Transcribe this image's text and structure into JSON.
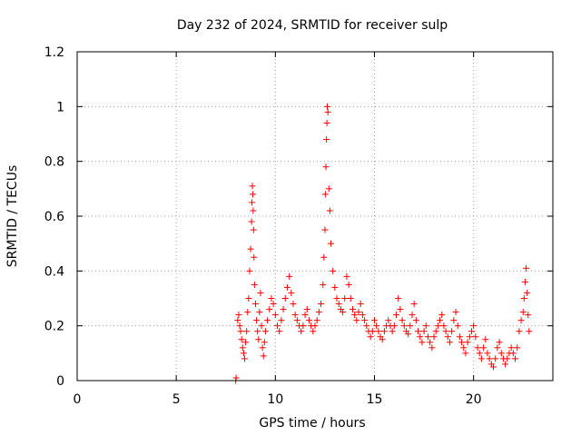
{
  "chart_data": {
    "type": "scatter",
    "title": "Day 232 of 2024, SRMTID for receiver sulp",
    "xlabel": "GPS time / hours",
    "ylabel": "SRMTID / TECUs",
    "xlim": [
      0,
      24
    ],
    "ylim": [
      0,
      1.2
    ],
    "xticks": [
      0,
      5,
      10,
      15,
      20
    ],
    "yticks": [
      0,
      0.2,
      0.4,
      0.6,
      0.8,
      1,
      1.2
    ],
    "xtick_labels": [
      "0",
      "5",
      "10",
      "15",
      "20"
    ],
    "ytick_labels": [
      "0",
      "0.2",
      "0.4",
      "0.6",
      "0.8",
      "1",
      "1.2"
    ],
    "grid": true,
    "marker": "+",
    "color": "#ff0000",
    "series": [
      {
        "name": "SRMTID",
        "x": [
          8.0,
          8.02,
          8.1,
          8.15,
          8.2,
          8.25,
          8.3,
          8.35,
          8.4,
          8.45,
          8.5,
          8.55,
          8.6,
          8.65,
          8.7,
          8.75,
          8.8,
          8.82,
          8.84,
          8.86,
          8.88,
          8.9,
          8.92,
          8.95,
          9.0,
          9.05,
          9.1,
          9.15,
          9.2,
          9.25,
          9.3,
          9.35,
          9.4,
          9.45,
          9.5,
          9.6,
          9.7,
          9.8,
          9.9,
          10.0,
          10.1,
          10.2,
          10.3,
          10.4,
          10.5,
          10.6,
          10.7,
          10.8,
          10.9,
          11.0,
          11.1,
          11.2,
          11.3,
          11.4,
          11.5,
          11.6,
          11.7,
          11.8,
          11.9,
          12.0,
          12.1,
          12.2,
          12.3,
          12.4,
          12.45,
          12.5,
          12.52,
          12.55,
          12.58,
          12.6,
          12.62,
          12.65,
          12.7,
          12.75,
          12.8,
          12.9,
          13.0,
          13.1,
          13.2,
          13.3,
          13.4,
          13.5,
          13.6,
          13.7,
          13.8,
          13.9,
          14.0,
          14.1,
          14.2,
          14.3,
          14.4,
          14.5,
          14.6,
          14.7,
          14.8,
          14.9,
          15.0,
          15.1,
          15.2,
          15.3,
          15.4,
          15.5,
          15.6,
          15.7,
          15.8,
          15.9,
          16.0,
          16.1,
          16.2,
          16.3,
          16.4,
          16.5,
          16.6,
          16.7,
          16.8,
          16.9,
          17.0,
          17.1,
          17.2,
          17.3,
          17.4,
          17.5,
          17.6,
          17.7,
          17.8,
          17.9,
          18.0,
          18.1,
          18.2,
          18.3,
          18.4,
          18.5,
          18.6,
          18.7,
          18.8,
          18.9,
          19.0,
          19.1,
          19.2,
          19.3,
          19.4,
          19.5,
          19.6,
          19.7,
          19.8,
          19.9,
          20.0,
          20.1,
          20.2,
          20.3,
          20.4,
          20.5,
          20.6,
          20.7,
          20.8,
          20.9,
          21.0,
          21.1,
          21.2,
          21.3,
          21.4,
          21.5,
          21.6,
          21.7,
          21.8,
          21.9,
          22.0,
          22.1,
          22.2,
          22.3,
          22.4,
          22.5,
          22.55,
          22.6,
          22.65,
          22.7,
          22.75,
          22.8
        ],
        "y": [
          0.0,
          0.01,
          0.22,
          0.24,
          0.2,
          0.18,
          0.15,
          0.12,
          0.1,
          0.08,
          0.14,
          0.18,
          0.25,
          0.3,
          0.4,
          0.48,
          0.58,
          0.65,
          0.71,
          0.68,
          0.62,
          0.55,
          0.45,
          0.35,
          0.28,
          0.22,
          0.18,
          0.15,
          0.25,
          0.32,
          0.2,
          0.12,
          0.09,
          0.14,
          0.18,
          0.22,
          0.26,
          0.3,
          0.28,
          0.24,
          0.2,
          0.18,
          0.22,
          0.26,
          0.3,
          0.34,
          0.38,
          0.32,
          0.28,
          0.24,
          0.22,
          0.2,
          0.18,
          0.2,
          0.24,
          0.26,
          0.22,
          0.2,
          0.18,
          0.2,
          0.22,
          0.25,
          0.28,
          0.35,
          0.45,
          0.55,
          0.68,
          0.78,
          0.88,
          0.94,
          1.0,
          0.98,
          0.7,
          0.62,
          0.5,
          0.4,
          0.34,
          0.3,
          0.28,
          0.26,
          0.25,
          0.3,
          0.38,
          0.35,
          0.3,
          0.26,
          0.24,
          0.22,
          0.25,
          0.28,
          0.24,
          0.22,
          0.2,
          0.18,
          0.16,
          0.18,
          0.22,
          0.2,
          0.18,
          0.16,
          0.15,
          0.18,
          0.2,
          0.22,
          0.2,
          0.18,
          0.2,
          0.24,
          0.3,
          0.26,
          0.22,
          0.2,
          0.18,
          0.17,
          0.2,
          0.24,
          0.28,
          0.22,
          0.18,
          0.16,
          0.14,
          0.18,
          0.2,
          0.16,
          0.14,
          0.12,
          0.16,
          0.18,
          0.2,
          0.22,
          0.24,
          0.2,
          0.18,
          0.16,
          0.14,
          0.18,
          0.22,
          0.25,
          0.2,
          0.16,
          0.14,
          0.12,
          0.1,
          0.14,
          0.16,
          0.18,
          0.2,
          0.16,
          0.12,
          0.1,
          0.08,
          0.12,
          0.15,
          0.1,
          0.08,
          0.06,
          0.05,
          0.08,
          0.12,
          0.14,
          0.1,
          0.08,
          0.06,
          0.08,
          0.1,
          0.12,
          0.1,
          0.08,
          0.12,
          0.18,
          0.22,
          0.25,
          0.3,
          0.36,
          0.41,
          0.32,
          0.24,
          0.18
        ]
      }
    ]
  }
}
